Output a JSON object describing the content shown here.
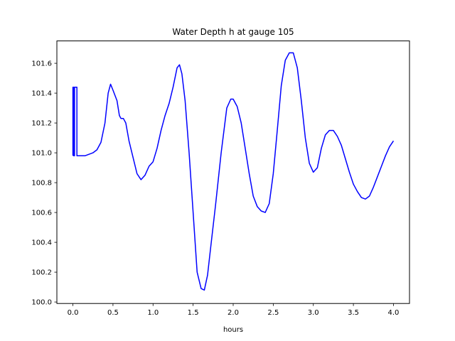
{
  "chart_data": {
    "type": "line",
    "title": "Water Depth h at gauge 105",
    "xlabel": "hours",
    "ylabel": "",
    "xlim": [
      -0.2,
      4.2
    ],
    "ylim": [
      99.99,
      101.75
    ],
    "xticks": [
      0.0,
      0.5,
      1.0,
      1.5,
      2.0,
      2.5,
      3.0,
      3.5,
      4.0
    ],
    "xtick_labels": [
      "0.0",
      "0.5",
      "1.0",
      "1.5",
      "2.0",
      "2.5",
      "3.0",
      "3.5",
      "4.0"
    ],
    "yticks": [
      100.0,
      100.2,
      100.4,
      100.6,
      100.8,
      101.0,
      101.2,
      101.4,
      101.6
    ],
    "ytick_labels": [
      "100.0",
      "100.2",
      "100.4",
      "100.6",
      "100.8",
      "101.0",
      "101.2",
      "101.4",
      "101.6"
    ],
    "grid": false,
    "legend": "none",
    "series": [
      {
        "color": "#0000ff",
        "x": [
          0.0,
          0.0,
          0.01,
          0.01,
          0.02,
          0.02,
          0.03,
          0.03,
          0.04,
          0.04,
          0.05,
          0.05,
          0.1,
          0.15,
          0.2,
          0.25,
          0.3,
          0.35,
          0.4,
          0.44,
          0.47,
          0.5,
          0.55,
          0.58,
          0.6,
          0.63,
          0.66,
          0.7,
          0.75,
          0.8,
          0.85,
          0.9,
          0.95,
          1.0,
          1.05,
          1.1,
          1.15,
          1.2,
          1.25,
          1.3,
          1.33,
          1.36,
          1.4,
          1.45,
          1.5,
          1.55,
          1.6,
          1.64,
          1.68,
          1.72,
          1.78,
          1.85,
          1.92,
          1.97,
          2.0,
          2.05,
          2.1,
          2.15,
          2.2,
          2.25,
          2.3,
          2.35,
          2.4,
          2.45,
          2.5,
          2.55,
          2.6,
          2.65,
          2.7,
          2.75,
          2.8,
          2.85,
          2.9,
          2.95,
          3.0,
          3.05,
          3.1,
          3.15,
          3.2,
          3.25,
          3.3,
          3.35,
          3.4,
          3.45,
          3.5,
          3.55,
          3.6,
          3.65,
          3.7,
          3.75,
          3.8,
          3.85,
          3.9,
          3.95,
          4.0
        ],
        "y": [
          100.98,
          101.44,
          101.44,
          100.98,
          100.98,
          101.44,
          101.44,
          101.44,
          101.44,
          101.44,
          101.44,
          100.98,
          100.98,
          100.98,
          100.99,
          101.0,
          101.02,
          101.07,
          101.2,
          101.4,
          101.46,
          101.42,
          101.35,
          101.25,
          101.23,
          101.23,
          101.2,
          101.08,
          100.97,
          100.86,
          100.82,
          100.85,
          100.91,
          100.94,
          101.03,
          101.15,
          101.25,
          101.33,
          101.44,
          101.57,
          101.59,
          101.53,
          101.35,
          101.0,
          100.6,
          100.2,
          100.09,
          100.08,
          100.18,
          100.37,
          100.65,
          101.0,
          101.3,
          101.36,
          101.36,
          101.31,
          101.2,
          101.03,
          100.86,
          100.71,
          100.64,
          100.61,
          100.6,
          100.66,
          100.86,
          101.15,
          101.45,
          101.62,
          101.67,
          101.67,
          101.57,
          101.35,
          101.1,
          100.93,
          100.87,
          100.9,
          101.03,
          101.12,
          101.15,
          101.15,
          101.11,
          101.05,
          100.96,
          100.87,
          100.79,
          100.74,
          100.7,
          100.69,
          100.71,
          100.77,
          100.84,
          100.91,
          100.98,
          101.04,
          101.08
        ]
      }
    ]
  }
}
